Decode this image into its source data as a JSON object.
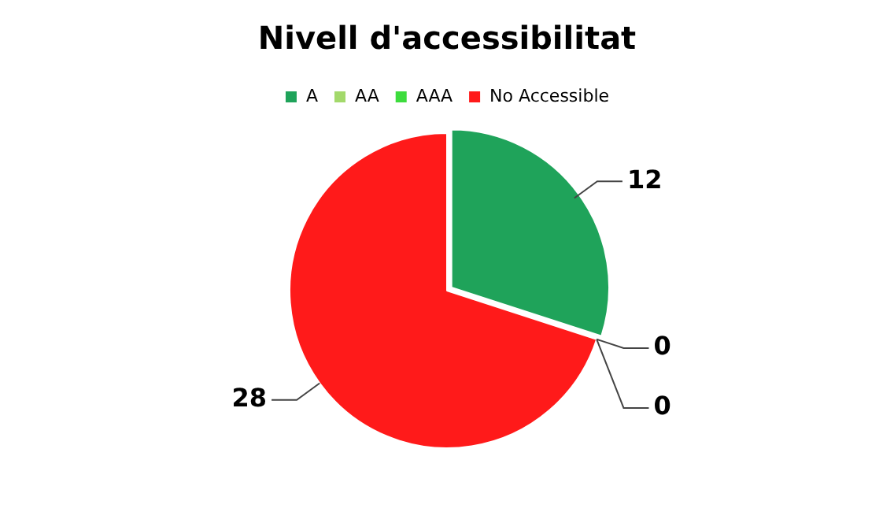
{
  "chart_data": {
    "type": "pie",
    "title": "Nivell d'accessibilitat",
    "categories": [
      "A",
      "AA",
      "AAA",
      "No Accessible"
    ],
    "values": [
      12,
      0,
      0,
      28
    ],
    "colors": [
      "#1fa35a",
      "#a3d96b",
      "#3ddc3d",
      "#ff1a1a"
    ],
    "value_labels": [
      "12",
      "0",
      "0",
      "28"
    ],
    "legend": "top"
  }
}
